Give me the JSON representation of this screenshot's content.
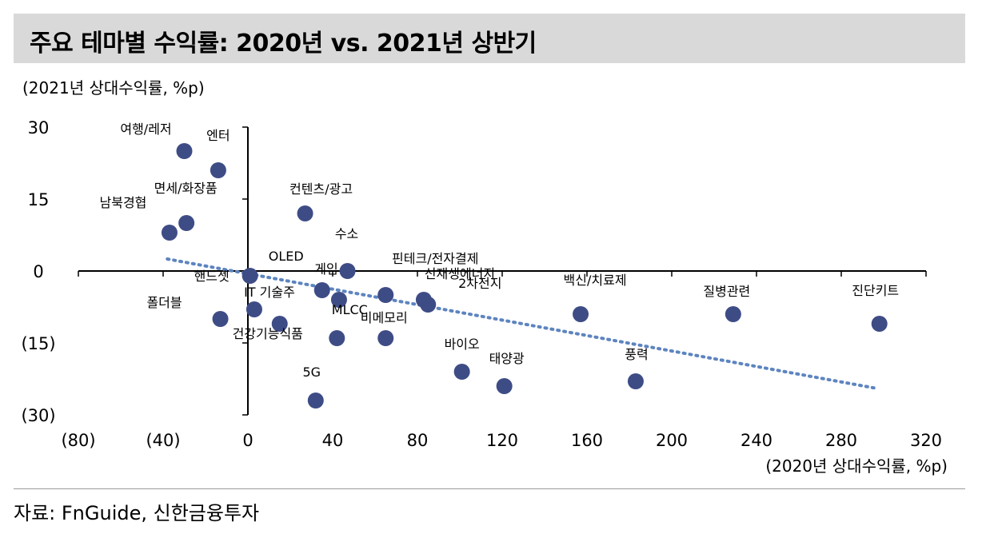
{
  "title": "주요 테마별 수익률: 2020년 vs. 2021년 상반기",
  "source": "자료: FnGuide, 신한금융투자",
  "colors": {
    "point": "#3e4c86",
    "trend": "#5d84c0",
    "axis": "#000000",
    "title_bg": "#d9d9d9"
  },
  "chart_data": {
    "type": "scatter",
    "title": "주요 테마별 수익률: 2020년 vs. 2021년 상반기",
    "xlabel": "(2020년 상대수익률, %p)",
    "ylabel": "(2021년 상대수익률, %p)",
    "xlim": [
      -80,
      320
    ],
    "ylim": [
      -30,
      30
    ],
    "xticks": [
      -80,
      -40,
      0,
      40,
      80,
      120,
      160,
      200,
      240,
      280,
      320
    ],
    "xtick_labels": [
      "(80)",
      "(40)",
      "0",
      "40",
      "80",
      "120",
      "160",
      "200",
      "240",
      "280",
      "320"
    ],
    "yticks": [
      30,
      15,
      0,
      -15,
      -30
    ],
    "ytick_labels": [
      "30",
      "15",
      "0",
      "(15)",
      "(30)"
    ],
    "grid": false,
    "points": [
      {
        "label": "여행/레저",
        "x": -30,
        "y": 25
      },
      {
        "label": "엔터",
        "x": -14,
        "y": 21
      },
      {
        "label": "면세/화장품",
        "x": -29,
        "y": 10
      },
      {
        "label": "남북경협",
        "x": -37,
        "y": 8
      },
      {
        "label": "컨텐츠/광고",
        "x": 27,
        "y": 12
      },
      {
        "label": "OLED",
        "x": 35,
        "y": -4
      },
      {
        "label": "수소",
        "x": 47,
        "y": 0
      },
      {
        "label": "게임",
        "x": 43,
        "y": -6
      },
      {
        "label": "핀테크/전자결제",
        "x": 65,
        "y": -5
      },
      {
        "label": "핸드셋",
        "x": 1,
        "y": -1
      },
      {
        "label": "IT 기술주",
        "x": 3,
        "y": -8
      },
      {
        "label": "폴더블",
        "x": -13,
        "y": -10
      },
      {
        "label": "건강기능식품",
        "x": 15,
        "y": -11
      },
      {
        "label": "MLCC",
        "x": 42,
        "y": -14
      },
      {
        "label": "비메모리",
        "x": 65,
        "y": -14
      },
      {
        "label": "신재생에너지",
        "x": 83,
        "y": -6
      },
      {
        "label": "2차전지",
        "x": 85,
        "y": -7
      },
      {
        "label": "백신/치료제",
        "x": 157,
        "y": -9
      },
      {
        "label": "질병관련",
        "x": 229,
        "y": -9
      },
      {
        "label": "진단키트",
        "x": 298,
        "y": -11
      },
      {
        "label": "바이오",
        "x": 101,
        "y": -21
      },
      {
        "label": "태양광",
        "x": 121,
        "y": -24
      },
      {
        "label": "풍력",
        "x": 183,
        "y": -23
      },
      {
        "label": "5G",
        "x": 32,
        "y": -27
      }
    ],
    "trendline": {
      "style": "dotted",
      "x": [
        -38,
        297
      ],
      "y": [
        2.5,
        -24.5
      ]
    }
  }
}
